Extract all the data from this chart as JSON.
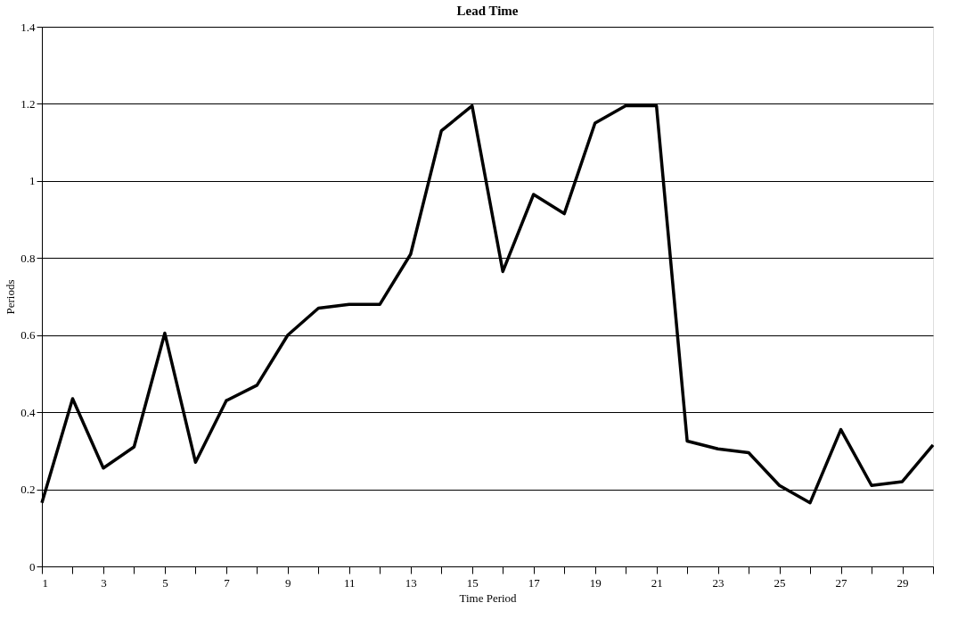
{
  "chart_data": {
    "type": "line",
    "title": "Lead Time",
    "xlabel": "Time Period",
    "ylabel": "Periods",
    "x": [
      1,
      2,
      3,
      4,
      5,
      6,
      7,
      8,
      9,
      10,
      11,
      12,
      13,
      14,
      15,
      16,
      17,
      18,
      19,
      20,
      21,
      22,
      23,
      24,
      25,
      26,
      27,
      28,
      29,
      30
    ],
    "series": [
      {
        "color": "#000000",
        "values": [
          0.165,
          0.435,
          0.255,
          0.31,
          0.605,
          0.27,
          0.43,
          0.47,
          0.6,
          0.67,
          0.68,
          0.68,
          0.81,
          1.13,
          1.195,
          0.765,
          0.965,
          0.915,
          1.15,
          1.195,
          1.195,
          0.325,
          0.305,
          0.295,
          0.21,
          0.165,
          0.355,
          0.21,
          0.22,
          0.315
        ]
      }
    ],
    "xlim": [
      1,
      30
    ],
    "xticks": [
      1,
      {
        "value": 2,
        "label": null
      },
      3,
      {
        "value": 4,
        "label": null
      },
      5,
      {
        "value": 6,
        "label": null
      },
      7,
      {
        "value": 8,
        "label": null
      },
      9,
      {
        "value": 10,
        "label": null
      },
      11,
      {
        "value": 12,
        "label": null
      },
      13,
      {
        "value": 14,
        "label": null
      },
      15,
      {
        "value": 16,
        "label": null
      },
      17,
      {
        "value": 18,
        "label": null
      },
      19,
      {
        "value": 20,
        "label": null
      },
      21,
      {
        "value": 22,
        "label": null
      },
      23,
      {
        "value": 24,
        "label": null
      },
      25,
      {
        "value": 26,
        "label": null
      },
      27,
      {
        "value": 28,
        "label": null
      },
      29,
      {
        "value": 30,
        "label": null
      }
    ],
    "ylim": [
      0,
      1.4
    ],
    "yticks": [
      0,
      0.2,
      0.4,
      0.6,
      0.8,
      1,
      1.2,
      1.4
    ],
    "grid": "y",
    "marker": "none",
    "line_style": "solid"
  }
}
